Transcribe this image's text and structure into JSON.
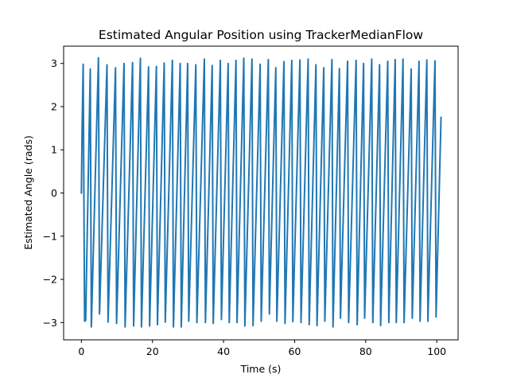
{
  "chart_data": {
    "type": "line",
    "title": "Estimated Angular Position using TrackerMedianFlow",
    "xlabel": "Time (s)",
    "ylabel": "Estimated Angle (rads)",
    "xlim": [
      -5,
      106
    ],
    "ylim": [
      -3.4,
      3.4
    ],
    "x_ticks": [
      0,
      20,
      40,
      60,
      80,
      100
    ],
    "y_ticks": [
      -3,
      -2,
      -1,
      0,
      1,
      2,
      3
    ],
    "x_tick_labels": [
      "0",
      "20",
      "40",
      "60",
      "80",
      "100"
    ],
    "y_tick_labels": [
      "−3",
      "−2",
      "−1",
      "0",
      "1",
      "2",
      "3"
    ],
    "grid": false,
    "series": [
      {
        "color": "#1f77b4",
        "x": [
          0.0,
          0.2,
          0.5,
          0.9,
          1.2,
          2.5,
          2.8,
          4.8,
          5.1,
          7.2,
          7.5,
          9.6,
          9.9,
          12.0,
          12.3,
          14.4,
          14.7,
          16.6,
          16.9,
          18.9,
          19.2,
          21.1,
          21.4,
          23.3,
          23.6,
          25.6,
          25.9,
          27.8,
          28.1,
          29.9,
          30.2,
          32.2,
          32.5,
          34.6,
          34.9,
          36.8,
          37.1,
          39.1,
          39.4,
          41.3,
          41.6,
          43.5,
          43.8,
          45.7,
          46.0,
          48.0,
          48.3,
          50.3,
          50.6,
          52.6,
          52.9,
          54.7,
          55.0,
          57.0,
          57.3,
          59.2,
          59.5,
          61.5,
          61.8,
          63.8,
          64.1,
          66.0,
          66.3,
          68.2,
          68.5,
          70.5,
          70.8,
          72.6,
          72.9,
          74.9,
          75.2,
          77.3,
          77.6,
          79.4,
          79.7,
          81.7,
          82.0,
          83.9,
          84.2,
          86.2,
          86.5,
          88.3,
          88.6,
          90.5,
          90.8,
          92.8,
          93.1,
          95.0,
          95.3,
          97.2,
          97.5,
          99.5,
          99.8,
          101.2
        ],
        "y": [
          0.0,
          1.5,
          2.98,
          -2.97,
          -2.95,
          2.87,
          -3.1,
          3.13,
          -2.8,
          2.97,
          -2.99,
          2.9,
          -3.02,
          3.0,
          -3.1,
          3.02,
          -3.08,
          3.12,
          -3.1,
          2.92,
          -3.08,
          2.93,
          -3.05,
          3.01,
          -2.99,
          3.07,
          -3.1,
          3.0,
          -3.1,
          3.0,
          -2.97,
          2.97,
          -3.0,
          3.1,
          -3.0,
          2.95,
          -3.02,
          3.07,
          -2.93,
          3.0,
          -3.0,
          3.07,
          -3.0,
          3.12,
          -3.08,
          3.1,
          -3.07,
          2.98,
          -2.97,
          3.09,
          -2.8,
          2.9,
          -2.97,
          3.04,
          -3.02,
          3.07,
          -2.98,
          3.08,
          -3.0,
          3.1,
          -3.05,
          2.97,
          -3.07,
          2.9,
          -2.97,
          3.09,
          -3.1,
          2.88,
          -2.9,
          3.05,
          -3.0,
          3.07,
          -3.05,
          3.0,
          -2.9,
          3.1,
          -3.0,
          2.97,
          -3.07,
          3.05,
          -3.0,
          3.09,
          -3.0,
          3.1,
          -3.0,
          2.87,
          -2.9,
          3.05,
          -2.97,
          3.08,
          -2.97,
          3.06,
          -2.87,
          1.75
        ]
      }
    ]
  }
}
